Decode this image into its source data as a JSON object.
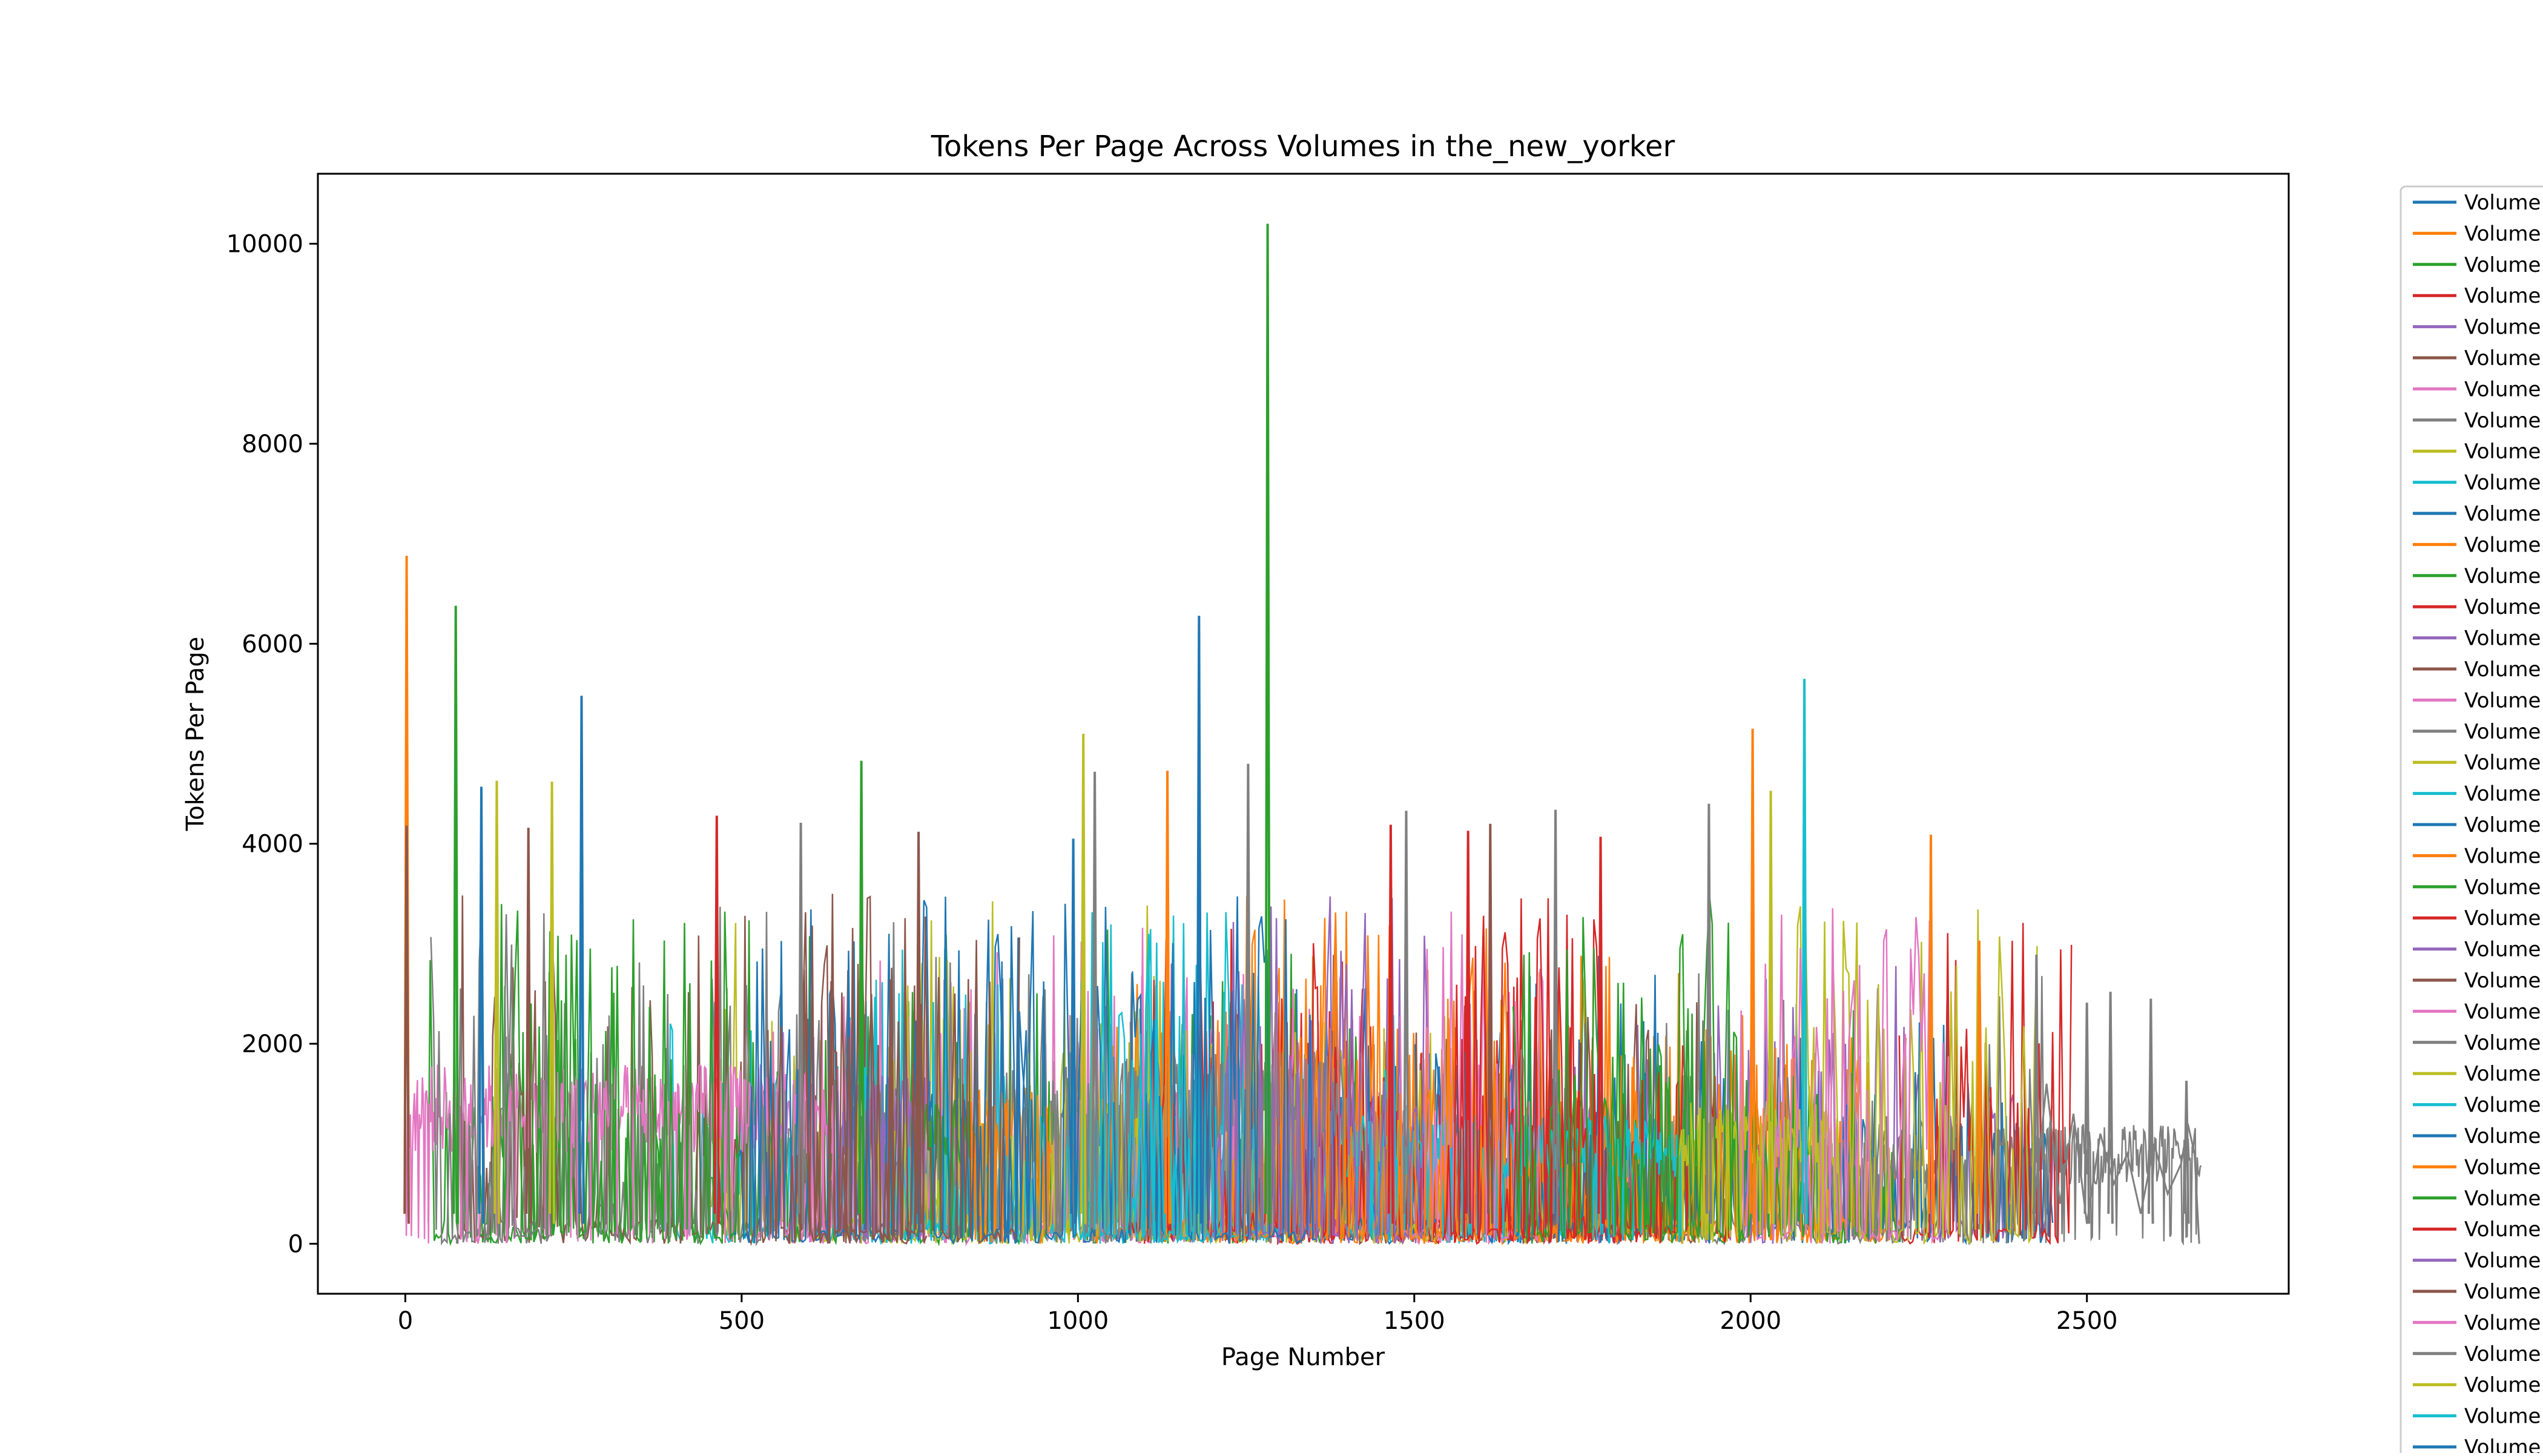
{
  "chart_data": {
    "type": "line",
    "title": "Tokens Per Page Across Volumes in the_new_yorker",
    "xlabel": "Page Number",
    "ylabel": "Tokens Per Page",
    "xlim": [
      -130,
      2800
    ],
    "ylim": [
      -500,
      10700
    ],
    "xticks": [
      0,
      500,
      1000,
      1500,
      2000,
      2500
    ],
    "yticks": [
      0,
      2000,
      4000,
      6000,
      8000,
      10000
    ],
    "grid": false,
    "legend": {
      "placement": "outside-right",
      "entry_label": "Volume",
      "visible_entries": 41
    },
    "palette": [
      "#1f77b4",
      "#ff7f0e",
      "#2ca02c",
      "#d62728",
      "#9467bd",
      "#8c564b",
      "#e377c2",
      "#7f7f7f",
      "#bcbd22",
      "#17becf"
    ],
    "series_summary": {
      "typical_range": [
        0,
        3500
      ],
      "dense_fill_bands": [
        {
          "x": [
            0,
            640
          ],
          "color": "#e377c2",
          "level": 1500
        },
        {
          "x": [
            640,
            780
          ],
          "color": "#9467bd",
          "level": 1400
        },
        {
          "x": [
            770,
            850
          ],
          "color": "#2ca02c",
          "level": 1200
        },
        {
          "x": [
            840,
            960
          ],
          "color": "#ff7f0e",
          "level": 1300
        },
        {
          "x": [
            960,
            1400
          ],
          "color": "#7f7f7f",
          "level": 1600
        },
        {
          "x": [
            1400,
            1720
          ],
          "color": "#17becf",
          "level": 1100
        },
        {
          "x": [
            1720,
            1900
          ],
          "color": "#17becf",
          "level": 1100
        },
        {
          "x": [
            1890,
            2130
          ],
          "color": "#bcbd22",
          "level": 1200
        },
        {
          "x": [
            2130,
            2670
          ],
          "color": "#7f7f7f",
          "level": 1000
        }
      ],
      "peaks": [
        {
          "x": 1282,
          "y": 10200,
          "color": "#2ca02c"
        },
        {
          "x": 2,
          "y": 6880,
          "color": "#ff7f0e"
        },
        {
          "x": 75,
          "y": 6380,
          "color": "#2ca02c"
        },
        {
          "x": 1180,
          "y": 6280,
          "color": "#1f77b4"
        },
        {
          "x": 2080,
          "y": 5650,
          "color": "#17becf"
        },
        {
          "x": 262,
          "y": 5480,
          "color": "#1f77b4"
        },
        {
          "x": 2003,
          "y": 5150,
          "color": "#ff7f0e"
        },
        {
          "x": 1008,
          "y": 5100,
          "color": "#bcbd22"
        },
        {
          "x": 678,
          "y": 4830,
          "color": "#2ca02c"
        },
        {
          "x": 1253,
          "y": 4800,
          "color": "#7f7f7f"
        },
        {
          "x": 1133,
          "y": 4730,
          "color": "#ff7f0e"
        },
        {
          "x": 1025,
          "y": 4720,
          "color": "#7f7f7f"
        },
        {
          "x": 136,
          "y": 4630,
          "color": "#bcbd22"
        },
        {
          "x": 218,
          "y": 4620,
          "color": "#bcbd22"
        },
        {
          "x": 113,
          "y": 4570,
          "color": "#1f77b4"
        },
        {
          "x": 2030,
          "y": 4530,
          "color": "#bcbd22"
        },
        {
          "x": 1938,
          "y": 4400,
          "color": "#7f7f7f"
        },
        {
          "x": 1710,
          "y": 4340,
          "color": "#7f7f7f"
        },
        {
          "x": 1488,
          "y": 4330,
          "color": "#7f7f7f"
        },
        {
          "x": 463,
          "y": 4280,
          "color": "#d62728"
        },
        {
          "x": 588,
          "y": 4210,
          "color": "#7f7f7f"
        },
        {
          "x": 1613,
          "y": 4200,
          "color": "#8c564b"
        },
        {
          "x": 1465,
          "y": 4190,
          "color": "#d62728"
        },
        {
          "x": 2,
          "y": 4180,
          "color": "#8c564b"
        },
        {
          "x": 183,
          "y": 4160,
          "color": "#8c564b"
        },
        {
          "x": 1580,
          "y": 4130,
          "color": "#d62728"
        },
        {
          "x": 763,
          "y": 4120,
          "color": "#8c564b"
        },
        {
          "x": 2268,
          "y": 4090,
          "color": "#ff7f0e"
        },
        {
          "x": 1777,
          "y": 4070,
          "color": "#d62728"
        },
        {
          "x": 993,
          "y": 4050,
          "color": "#1f77b4"
        },
        {
          "x": 2340,
          "y": 3030,
          "color": "#ff7f0e"
        },
        {
          "x": 2425,
          "y": 2890,
          "color": "#7f7f7f"
        },
        {
          "x": 2535,
          "y": 2520,
          "color": "#7f7f7f"
        },
        {
          "x": 2595,
          "y": 2450,
          "color": "#7f7f7f"
        },
        {
          "x": 2500,
          "y": 2410,
          "color": "#7f7f7f"
        },
        {
          "x": 2648,
          "y": 1630,
          "color": "#7f7f7f"
        }
      ],
      "trailing_series": {
        "color": "#7f7f7f",
        "x": [
          2420,
          2440,
          2460,
          2480,
          2500,
          2520,
          2540,
          2560,
          2580,
          2600,
          2620,
          2640,
          2650,
          2660,
          2667
        ],
        "y": [
          300,
          1600,
          400,
          1300,
          200,
          1100,
          600,
          900,
          300,
          1000,
          500,
          800,
          1200,
          900,
          0
        ]
      }
    }
  }
}
